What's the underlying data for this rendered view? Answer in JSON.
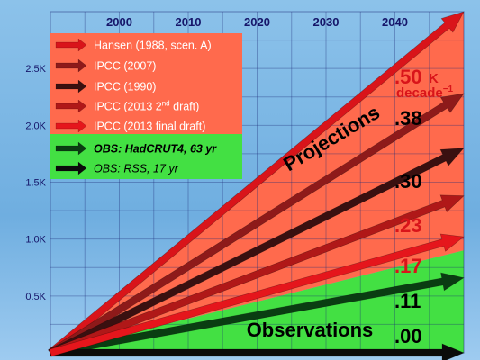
{
  "colors": {
    "background": "#7fb9e5",
    "projections_fill": "#ff6a4d",
    "observations_fill": "#43e043",
    "red_arrow": "#d9141a",
    "dark_red_arrow": "#8e1a1a",
    "black_arrow": "#0b0b0b",
    "dark_green_arrow": "#0a3d12"
  },
  "chart_data": {
    "type": "line",
    "x_ticks": [
      "2000",
      "2010",
      "2020",
      "2030",
      "2040"
    ],
    "y_ticks": [
      "0.5K",
      "1.0K",
      "1.5K",
      "2.0K",
      "2.5K"
    ],
    "xlim": [
      1990,
      2050
    ],
    "ylim": [
      0,
      3.0
    ],
    "origin_year": 1990,
    "end_year": 2050,
    "rate_unit": "K decade⁻¹",
    "rate_unit_main": "K",
    "rate_unit_decade": "decade",
    "rate_unit_exp": "−1",
    "band_labels": {
      "projections": "Projections",
      "observations": "Observations"
    },
    "series": [
      {
        "name": "Hansen (1988, scen. A)",
        "rate_label": ".50",
        "rate": 0.5,
        "color": "#d9141a",
        "group": "projection"
      },
      {
        "name": "IPCC (2007)",
        "rate_label": ".38",
        "rate": 0.38,
        "color": "#8e1a1a",
        "group": "projection"
      },
      {
        "name": "IPCC (1990)",
        "rate_label": ".30",
        "rate": 0.3,
        "color": "#3a1010",
        "group": "projection"
      },
      {
        "name": "IPCC (2013 2nd draft)",
        "rate_label": ".23",
        "rate": 0.23,
        "color": "#b01818",
        "group": "projection"
      },
      {
        "name": "IPCC (2013 final draft)",
        "rate_label": ".17",
        "rate": 0.17,
        "color": "#e5161c",
        "group": "projection"
      },
      {
        "name": "OBS: HadCRUT4, 63 yr",
        "rate_label": ".11",
        "rate": 0.11,
        "color": "#0a3d12",
        "group": "observation"
      },
      {
        "name": "OBS: RSS, 17 yr",
        "rate_label": ".00",
        "rate": 0.0,
        "color": "#0b0b0b",
        "group": "observation"
      }
    ],
    "legend_parts": {
      "ipcc_2013_2nd_prefix": "IPCC (2013 2",
      "ipcc_2013_2nd_sup": "nd",
      "ipcc_2013_2nd_suffix": " draft)"
    }
  }
}
